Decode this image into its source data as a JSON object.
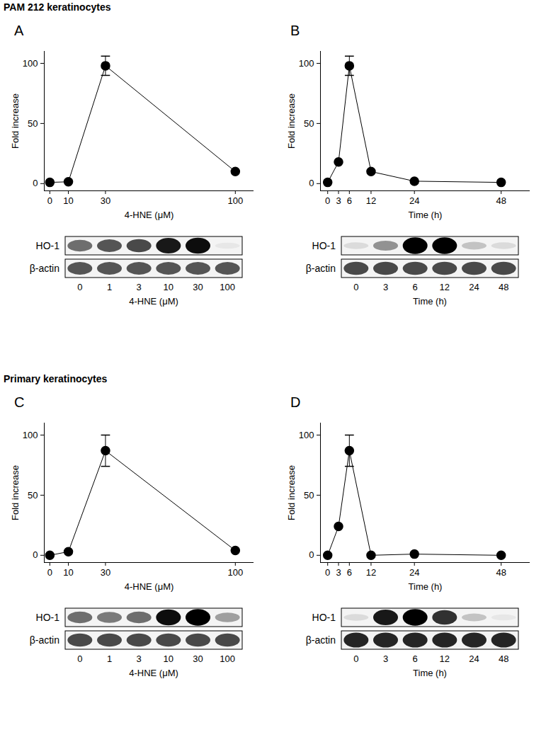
{
  "headings": [
    "PAM 212 keratinocytes",
    "Primary keratinocytes"
  ],
  "chart_data": [
    {
      "type": "line",
      "title": "A",
      "x_label": "4-HNE (μM)",
      "y_label": "Fold increase",
      "x": [
        0,
        10,
        30,
        100
      ],
      "values": [
        1,
        1.5,
        98,
        10
      ],
      "errors": [
        0,
        0,
        8,
        0
      ],
      "xlim": [
        -3,
        110
      ],
      "ylim": [
        -6,
        110
      ],
      "xticks": [
        0,
        10,
        30,
        100
      ],
      "yticks": [
        0,
        50,
        100
      ],
      "color": "#000000",
      "marker": "circle"
    },
    {
      "type": "line",
      "title": "B",
      "x_label": "Time (h)",
      "y_label": "Fold increase",
      "x": [
        0,
        3,
        6,
        12,
        24,
        48
      ],
      "values": [
        1,
        18,
        98,
        10,
        2,
        1
      ],
      "errors": [
        0,
        0,
        8,
        0,
        0,
        0
      ],
      "xlim": [
        -2,
        56
      ],
      "ylim": [
        -6,
        110
      ],
      "xticks": [
        0,
        3,
        6,
        12,
        24,
        48
      ],
      "yticks": [
        0,
        50,
        100
      ],
      "color": "#000000",
      "marker": "circle"
    },
    {
      "type": "line",
      "title": "C",
      "x_label": "4-HNE (μM)",
      "y_label": "Fold increase",
      "x": [
        0,
        10,
        30,
        100
      ],
      "values": [
        0,
        3,
        87,
        4
      ],
      "errors": [
        0,
        0,
        13,
        0
      ],
      "xlim": [
        -3,
        110
      ],
      "ylim": [
        -6,
        110
      ],
      "xticks": [
        0,
        10,
        30,
        100
      ],
      "yticks": [
        0,
        50,
        100
      ],
      "color": "#000000",
      "marker": "circle"
    },
    {
      "type": "line",
      "title": "D",
      "x_label": "Time (h)",
      "y_label": "Fold increase",
      "x": [
        0,
        3,
        6,
        12,
        24,
        48
      ],
      "values": [
        0,
        24,
        87,
        0,
        1,
        0
      ],
      "errors": [
        0,
        0,
        13,
        0,
        0,
        0
      ],
      "xlim": [
        -2,
        56
      ],
      "ylim": [
        -6,
        110
      ],
      "xticks": [
        0,
        3,
        6,
        12,
        24,
        48
      ],
      "yticks": [
        0,
        50,
        100
      ],
      "color": "#000000",
      "marker": "circle"
    }
  ],
  "blots": [
    {
      "x_label": "4-HNE (μM)",
      "lanes": [
        0,
        1,
        3,
        10,
        30,
        100
      ],
      "rows": [
        {
          "label": "HO-1",
          "intensity": [
            0.55,
            0.65,
            0.7,
            0.9,
            0.95,
            0.05
          ]
        },
        {
          "label": "β-actin",
          "intensity": [
            0.65,
            0.65,
            0.65,
            0.65,
            0.65,
            0.65
          ]
        }
      ]
    },
    {
      "x_label": "Time (h)",
      "lanes": [
        0,
        3,
        6,
        12,
        24,
        48
      ],
      "rows": [
        {
          "label": "HO-1",
          "intensity": [
            0.1,
            0.4,
            1,
            1,
            0.2,
            0.1
          ]
        },
        {
          "label": "β-actin",
          "intensity": [
            0.7,
            0.7,
            0.7,
            0.7,
            0.7,
            0.7
          ]
        }
      ]
    },
    {
      "x_label": "4-HNE (μM)",
      "lanes": [
        0,
        1,
        3,
        10,
        30,
        100
      ],
      "rows": [
        {
          "label": "HO-1",
          "intensity": [
            0.55,
            0.5,
            0.55,
            0.95,
            1,
            0.35
          ]
        },
        {
          "label": "β-actin",
          "intensity": [
            0.7,
            0.7,
            0.7,
            0.7,
            0.7,
            0.7
          ]
        }
      ]
    },
    {
      "x_label": "Time (h)",
      "lanes": [
        0,
        3,
        6,
        12,
        24,
        48
      ],
      "rows": [
        {
          "label": "HO-1",
          "intensity": [
            0.1,
            0.9,
            1,
            0.8,
            0.2,
            0.05
          ]
        },
        {
          "label": "β-actin",
          "intensity": [
            0.85,
            0.85,
            0.85,
            0.85,
            0.85,
            0.85
          ]
        }
      ]
    }
  ]
}
